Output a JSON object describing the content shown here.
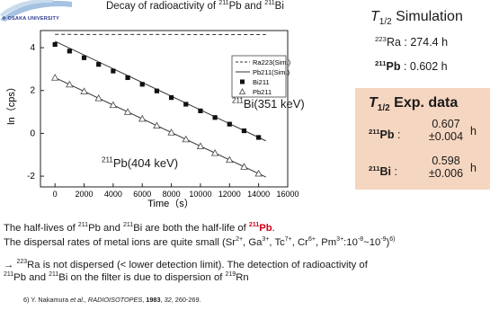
{
  "header": {
    "logo_text": "OSAKA UNIVERSITY",
    "title_parts": [
      "Decay of radioactivity of ",
      "211",
      "Pb and ",
      "211",
      "Bi"
    ]
  },
  "sim_box": {
    "title_T": "T",
    "title_sub": "1/2",
    "title_rest": " Simulation",
    "ra_sup": "223",
    "ra_text": "Ra : 274.4 h",
    "pb_sup": "211",
    "pb_label": "Pb",
    "pb_value": " : 0.602 h"
  },
  "exp_box": {
    "title_T": "T",
    "title_sub": "1/2",
    "title_rest": "Exp. data",
    "pb_sup": "211",
    "pb_label": "Pb",
    "bi_sup": "211",
    "bi_label": "Bi",
    "colon": " :",
    "pb_value": "0.607",
    "pb_err": "±0.004",
    "bi_value": "0.598",
    "bi_err": "±0.006",
    "unit": "h"
  },
  "annotations": {
    "bi_sup": "211",
    "bi_text": "Bi(351 keV)",
    "pb_sup": "211",
    "pb_text": "Pb(404 keV)"
  },
  "body_text": {
    "line1_a": "The half-lives of ",
    "line1_b": "Pb and ",
    "line1_c": "Bi are both the half-life of ",
    "line1_sup": "211",
    "line1_red_sup": "211",
    "line1_red": "Pb",
    "line1_end": ".",
    "line2": "The dispersal rates of metal ions are quite small (Sr",
    "line2_sr": "2+",
    "line2_ga": ", Ga",
    "line2_ga_sup": "3+",
    "line2_tc": ", Tc",
    "line2_tc_sup": "7+",
    "line2_cr": ", Cr",
    "line2_cr_sup": "6+",
    "line2_pm": ", Pm",
    "line2_pm_sup": "3+",
    "line2_rate": ":10",
    "line2_exp1": "-8",
    "line2_tilde": "~10",
    "line2_exp2": "-9",
    "line2_close": ")",
    "line2_ref": "6)",
    "line3_a": "→ ",
    "line3_sup": "223",
    "line3_b": "Ra is not dispersed (< lower detection limit). The detection of radioactivity of",
    "line4_sup1": "211",
    "line4_a": "Pb and ",
    "line4_sup2": "211",
    "line4_b": "Bi on the filter is due to dispersion of ",
    "line4_sup3": "219",
    "line4_c": "Rn"
  },
  "reference": {
    "authors": "6) Y. Nakamura ",
    "etal": "et al., RADIOISOTOPES",
    "comma1": ", ",
    "year": "1983",
    "comma2": ", ",
    "volume": "32",
    "pages": ", 260-269."
  },
  "chart_data": {
    "type": "scatter",
    "xlabel": "Time（s）",
    "ylabel": "ln（cps）",
    "xlim": [
      -1000,
      16000
    ],
    "ylim": [
      -2.5,
      4.8
    ],
    "xticks": [
      0,
      2000,
      4000,
      6000,
      8000,
      10000,
      12000,
      14000,
      16000
    ],
    "yticks": [
      -2,
      0,
      2,
      4
    ],
    "legend_position": "top-right",
    "legend": [
      "Ra223(Sim.)",
      "Pb211(Sim.)",
      "Bi211",
      "Pb211"
    ],
    "series": [
      {
        "name": "Ra223(Sim.)",
        "kind": "dashed-line",
        "x": [
          0,
          14500
        ],
        "y": [
          4.62,
          4.61
        ]
      },
      {
        "name": "Pb211(Sim.)",
        "kind": "line",
        "x": [
          0,
          14500
        ],
        "y": [
          4.3,
          -0.35
        ]
      },
      {
        "name": "Bi211",
        "kind": "filled-square",
        "x": [
          0,
          1000,
          2000,
          3000,
          4000,
          5000,
          6000,
          7000,
          8000,
          9000,
          10000,
          11000,
          12000,
          13000,
          14000
        ],
        "y": [
          4.15,
          3.84,
          3.53,
          3.22,
          2.91,
          2.6,
          2.29,
          1.98,
          1.67,
          1.36,
          1.05,
          0.74,
          0.43,
          0.12,
          -0.19
        ]
      },
      {
        "name": "Pb211",
        "kind": "open-triangle",
        "x": [
          0,
          1000,
          2000,
          3000,
          4000,
          5000,
          6000,
          7000,
          8000,
          9000,
          10000,
          11000,
          12000,
          13000,
          14000
        ],
        "y": [
          2.6,
          2.28,
          1.96,
          1.64,
          1.32,
          1.0,
          0.68,
          0.36,
          0.04,
          -0.28,
          -0.6,
          -0.92,
          -1.24,
          -1.56,
          -1.88
        ]
      }
    ],
    "fit_lines": [
      {
        "for": "Pb211",
        "x": [
          0,
          14500
        ],
        "y": [
          2.6,
          -2.04
        ]
      }
    ]
  }
}
